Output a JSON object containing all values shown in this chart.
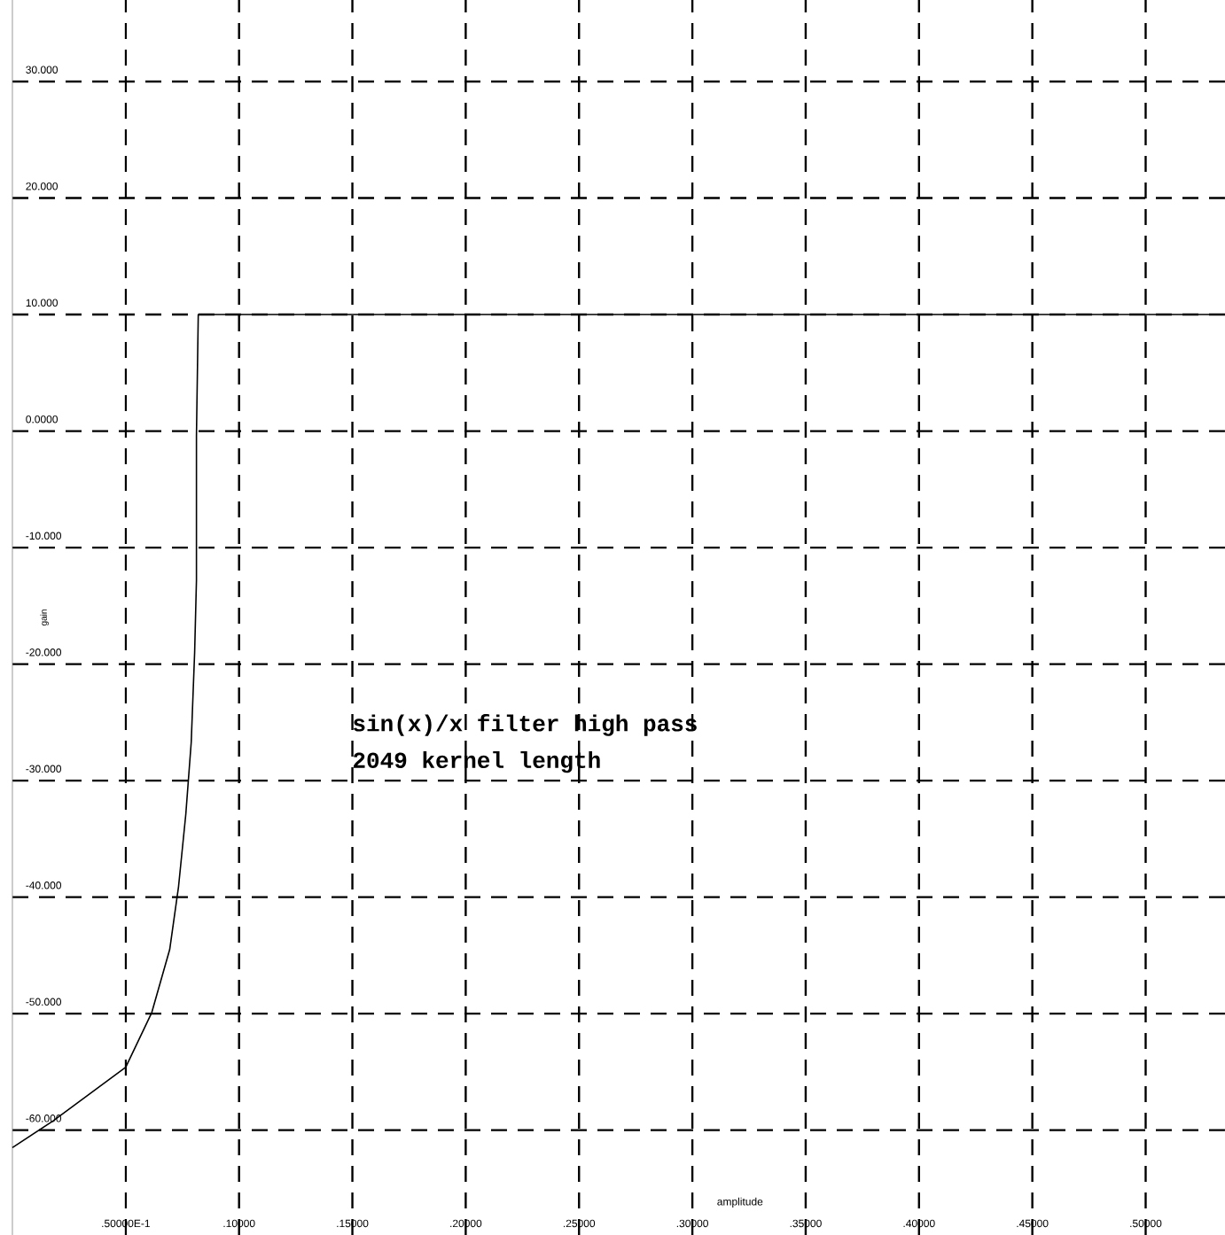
{
  "chart_data": {
    "type": "line",
    "xlabel": "amplitude",
    "ylabel": "gain",
    "annotations": [
      "sin(x)/x filter high pass",
      "2049 kernel length"
    ],
    "x": [
      0,
      0.018,
      0.034,
      0.05,
      0.0615,
      0.0694,
      0.0733,
      0.0765,
      0.0789,
      0.0804,
      0.0812,
      0.0812,
      0.082,
      0.535
    ],
    "series": [
      {
        "color": "#000000",
        "values": [
          -61.5,
          -59.2,
          -56.9,
          -54.6,
          -49.9,
          -44.5,
          -39.1,
          -32.9,
          -26.7,
          -19.0,
          -12.8,
          -0.4,
          10,
          10
        ]
      }
    ],
    "xlim": [
      0,
      0.535
    ],
    "ylim": [
      -69,
      37
    ],
    "xticks": [
      {
        "value": 0.05,
        "label": ".50000E-1"
      },
      {
        "value": 0.1,
        "label": ".10000"
      },
      {
        "value": 0.15,
        "label": ".15000"
      },
      {
        "value": 0.2,
        "label": ".20000"
      },
      {
        "value": 0.25,
        "label": ".25000"
      },
      {
        "value": 0.3,
        "label": ".30000"
      },
      {
        "value": 0.35,
        "label": ".35000"
      },
      {
        "value": 0.4,
        "label": ".40000"
      },
      {
        "value": 0.45,
        "label": ".45000"
      },
      {
        "value": 0.5,
        "label": ".50000"
      }
    ],
    "yticks": [
      {
        "value": 30,
        "label": "30.000"
      },
      {
        "value": 20,
        "label": "20.000"
      },
      {
        "value": 10,
        "label": "10.000"
      },
      {
        "value": 0,
        "label": "0.0000"
      },
      {
        "value": -10,
        "label": "-10.000"
      },
      {
        "value": -20,
        "label": "-20.000"
      },
      {
        "value": -30,
        "label": "-30.000"
      },
      {
        "value": -40,
        "label": "-40.000"
      },
      {
        "value": -50,
        "label": "-50.000"
      },
      {
        "value": -60,
        "label": "-60.000"
      }
    ],
    "grid": true,
    "line_style": "solid",
    "marker": "none"
  }
}
